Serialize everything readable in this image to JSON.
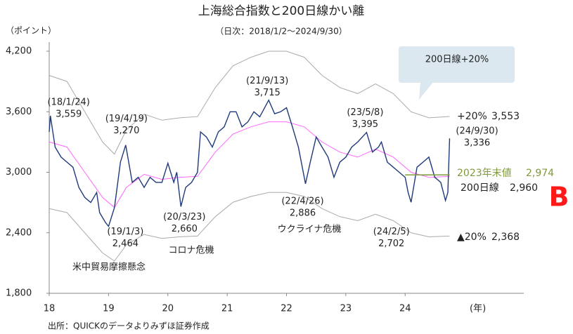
{
  "chart_data": {
    "type": "line",
    "title": "上海総合指数と200日線かい離",
    "subtitle": "（日次：2018/1/2～2024/9/30）",
    "y_label": "（ポイント）",
    "x_label": "(年)",
    "source": "出所：QUICKのデータよりみずほ証券作成",
    "xlim": [
      2018,
      2026
    ],
    "xticks": [
      {
        "value": 2018,
        "label": "18"
      },
      {
        "value": 2019,
        "label": "19"
      },
      {
        "value": 2020,
        "label": "20"
      },
      {
        "value": 2021,
        "label": "21"
      },
      {
        "value": 2022,
        "label": "22"
      },
      {
        "value": 2023,
        "label": "23"
      },
      {
        "value": 2024,
        "label": "24"
      }
    ],
    "ylim": [
      1800,
      4200
    ],
    "yticks": [
      {
        "value": 1800,
        "label": "1,800"
      },
      {
        "value": 2400,
        "label": "2,400"
      },
      {
        "value": 3000,
        "label": "3,000"
      },
      {
        "value": 3600,
        "label": "3,600"
      },
      {
        "value": 4200,
        "label": "4,200"
      }
    ],
    "series": [
      {
        "color": "#1f3a7a",
        "x": [
          2018.0,
          2018.02,
          2018.1,
          2018.2,
          2018.3,
          2018.4,
          2018.5,
          2018.6,
          2018.7,
          2018.8,
          2018.85,
          2018.95,
          2019.0,
          2019.1,
          2019.2,
          2019.29,
          2019.4,
          2019.5,
          2019.6,
          2019.7,
          2019.8,
          2019.9,
          2020.0,
          2020.1,
          2020.15,
          2020.22,
          2020.3,
          2020.4,
          2020.5,
          2020.55,
          2020.65,
          2020.75,
          2020.85,
          2020.95,
          2021.05,
          2021.15,
          2021.25,
          2021.35,
          2021.45,
          2021.55,
          2021.7,
          2021.8,
          2021.9,
          2022.0,
          2022.1,
          2022.2,
          2022.32,
          2022.4,
          2022.5,
          2022.6,
          2022.7,
          2022.8,
          2022.9,
          2023.0,
          2023.1,
          2023.2,
          2023.35,
          2023.45,
          2023.55,
          2023.6,
          2023.7,
          2023.8,
          2023.9,
          2024.0,
          2024.05,
          2024.1,
          2024.2,
          2024.3,
          2024.4,
          2024.5,
          2024.6,
          2024.68,
          2024.72,
          2024.75
        ],
        "values": [
          3400,
          3559,
          3250,
          3150,
          3100,
          3050,
          2850,
          2750,
          2700,
          2800,
          2600,
          2500,
          2464,
          2650,
          3100,
          3270,
          2900,
          2950,
          2850,
          2950,
          2900,
          2900,
          3090,
          2900,
          3000,
          2660,
          2850,
          2900,
          3000,
          3400,
          3350,
          3250,
          3400,
          3450,
          3600,
          3600,
          3450,
          3500,
          3600,
          3550,
          3715,
          3580,
          3600,
          3640,
          3450,
          3250,
          2886,
          3100,
          3350,
          3250,
          3150,
          2950,
          3100,
          3150,
          3250,
          3300,
          3395,
          3200,
          3250,
          3300,
          3100,
          3050,
          3000,
          2950,
          2800,
          2702,
          3050,
          3100,
          3150,
          2950,
          2900,
          2720,
          2800,
          3336
        ]
      },
      {
        "name": "200日線",
        "color": "#ff66ff",
        "x": [
          2018.0,
          2018.3,
          2018.6,
          2018.9,
          2019.1,
          2019.3,
          2019.6,
          2019.9,
          2020.2,
          2020.5,
          2020.8,
          2021.1,
          2021.4,
          2021.7,
          2022.0,
          2022.3,
          2022.6,
          2022.9,
          2023.2,
          2023.5,
          2023.8,
          2024.1,
          2024.4,
          2024.75
        ],
        "values": [
          3300,
          3250,
          3000,
          2750,
          2650,
          2850,
          2980,
          2930,
          2950,
          2960,
          3200,
          3380,
          3450,
          3500,
          3500,
          3450,
          3300,
          3200,
          3150,
          3230,
          3150,
          3000,
          2950,
          2960
        ],
        "value_label": "2,960"
      },
      {
        "name": "+20%",
        "color": "#aaaaaa",
        "x": [
          2018.0,
          2018.3,
          2018.6,
          2018.9,
          2019.1,
          2019.3,
          2019.6,
          2019.9,
          2020.2,
          2020.5,
          2020.8,
          2021.1,
          2021.4,
          2021.7,
          2022.0,
          2022.3,
          2022.6,
          2022.9,
          2023.2,
          2023.5,
          2023.8,
          2024.1,
          2024.4,
          2024.75
        ],
        "values": [
          3960,
          3900,
          3600,
          3300,
          3180,
          3420,
          3576,
          3516,
          3540,
          3552,
          3840,
          4056,
          4140,
          4200,
          4200,
          4140,
          3960,
          3840,
          3780,
          3876,
          3780,
          3600,
          3540,
          3553
        ],
        "value_label": "3,553"
      },
      {
        "name": "▲20%",
        "color": "#aaaaaa",
        "x": [
          2018.0,
          2018.3,
          2018.6,
          2018.9,
          2019.1,
          2019.3,
          2019.6,
          2019.9,
          2020.2,
          2020.5,
          2020.8,
          2021.1,
          2021.4,
          2021.7,
          2022.0,
          2022.3,
          2022.6,
          2022.9,
          2023.2,
          2023.5,
          2023.8,
          2024.1,
          2024.4,
          2024.75
        ],
        "values": [
          2640,
          2600,
          2400,
          2200,
          2120,
          2280,
          2384,
          2344,
          2360,
          2368,
          2560,
          2704,
          2760,
          2800,
          2800,
          2760,
          2640,
          2560,
          2520,
          2584,
          2520,
          2400,
          2360,
          2368
        ],
        "value_label": "2,368"
      }
    ],
    "reference": {
      "label": "2023年末値",
      "value": 2974,
      "value_label": "2,974",
      "color": "#7f9a3a",
      "x": [
        2024.0,
        2024.75
      ]
    },
    "annotations": [
      {
        "date": "(18/1/24)",
        "label": "3,559",
        "x": 2018.02,
        "y": 3559
      },
      {
        "date": "(19/1/3)",
        "label": "2,464",
        "x": 2019.0,
        "y": 2464
      },
      {
        "date": "(19/4/19)",
        "label": "3,270",
        "x": 2019.29,
        "y": 3270
      },
      {
        "date": "(20/3/23)",
        "label": "2,660",
        "x": 2020.22,
        "y": 2660
      },
      {
        "date": "(21/9/13)",
        "label": "3,715",
        "x": 2021.7,
        "y": 3715
      },
      {
        "date": "(22/4/26)",
        "label": "2,886",
        "x": 2022.32,
        "y": 2886
      },
      {
        "date": "(23/5/8)",
        "label": "3,395",
        "x": 2023.35,
        "y": 3395
      },
      {
        "date": "(24/2/5)",
        "label": "2,702",
        "x": 2024.1,
        "y": 2702
      },
      {
        "date": "(24/9/30)",
        "label": "3,336",
        "x": 2024.75,
        "y": 3336
      }
    ],
    "notes": [
      "米中貿易摩擦懸念",
      "コロナ危機",
      "ウクライナ危機"
    ],
    "callout": "200日線+20%",
    "marker": "B"
  }
}
